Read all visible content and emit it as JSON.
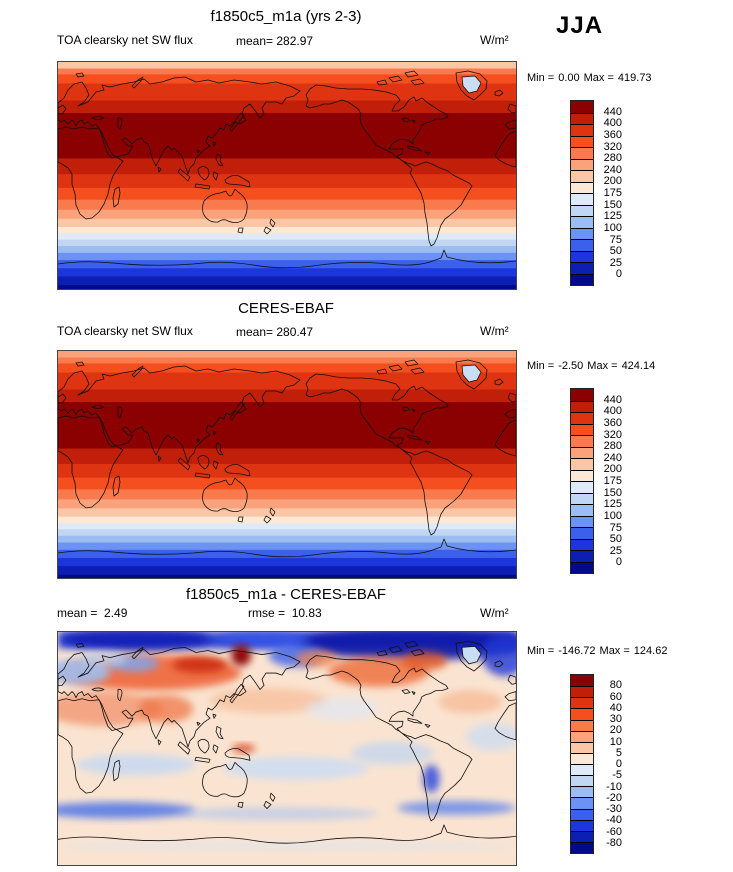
{
  "figure": {
    "season_label": "JJA"
  },
  "panels": [
    {
      "title": "f1850c5_m1a (yrs 2-3)",
      "variable": "TOA clearsky net SW flux",
      "mean_label": "mean=",
      "mean": "282.97",
      "units": "W/m²",
      "min_label": "Min =",
      "min": "0.00",
      "max_label": "Max =",
      "max": "419.73"
    },
    {
      "title": "CERES-EBAF",
      "variable": "TOA clearsky net SW flux",
      "mean_label": "mean=",
      "mean": "280.47",
      "units": "W/m²",
      "min_label": "Min =",
      "min": "-2.50",
      "max_label": "Max =",
      "max": "424.14"
    },
    {
      "title": "f1850c5_m1a - CERES-EBAF",
      "mean_label": "mean =",
      "mean": "2.49",
      "rmse_label": "rmse =",
      "rmse": "10.83",
      "units": "W/m²",
      "min_label": "Min =",
      "min": "-146.72",
      "max_label": "Max =",
      "max": "124.62"
    }
  ],
  "chart_data": [
    {
      "type": "heatmap",
      "title": "f1850c5_m1a (yrs 2-3)",
      "subtitle": "TOA clearsky net SW flux",
      "season": "JJA",
      "units": "W/m²",
      "projection": "global lat-lon, Pacific-centered",
      "mean": 282.97,
      "min": 0.0,
      "max": 419.73,
      "levels": [
        0,
        25,
        50,
        75,
        100,
        125,
        150,
        175,
        200,
        240,
        280,
        320,
        360,
        400,
        440
      ],
      "colorbar_ticks": [
        "440",
        "400",
        "360",
        "320",
        "280",
        "240",
        "200",
        "175",
        "150",
        "125",
        "100",
        "75",
        "50",
        "25",
        "0"
      ],
      "palette": [
        "#8B0000",
        "#C11F09",
        "#DF3412",
        "#F54E1F",
        "#F97B4D",
        "#FAA27C",
        "#FBC6A5",
        "#FCE8D4",
        "#DEEAF8",
        "#C1D6F3",
        "#9BBDF1",
        "#6C93F3",
        "#3B60EC",
        "#1C35DC",
        "#0D1FB2",
        "#020A8C"
      ],
      "zonal_bands": [
        [
          0.03,
          6
        ],
        [
          0.026,
          4
        ],
        [
          0.04,
          3
        ],
        [
          0.075,
          2
        ],
        [
          0.055,
          1
        ],
        [
          0.2,
          0
        ],
        [
          0.07,
          1
        ],
        [
          0.06,
          2
        ],
        [
          0.052,
          3
        ],
        [
          0.044,
          4
        ],
        [
          0.04,
          5
        ],
        [
          0.036,
          6
        ],
        [
          0.03,
          7
        ],
        [
          0.026,
          8
        ],
        [
          0.028,
          9
        ],
        [
          0.03,
          10
        ],
        [
          0.032,
          11
        ],
        [
          0.036,
          12
        ],
        [
          0.036,
          13
        ],
        [
          0.038,
          14
        ],
        [
          0.016,
          15
        ]
      ]
    },
    {
      "type": "heatmap",
      "title": "CERES-EBAF",
      "subtitle": "TOA clearsky net SW flux",
      "season": "JJA",
      "units": "W/m²",
      "projection": "global lat-lon, Pacific-centered",
      "mean": 280.47,
      "min": -2.5,
      "max": 424.14,
      "levels": [
        0,
        25,
        50,
        75,
        100,
        125,
        150,
        175,
        200,
        240,
        280,
        320,
        360,
        400,
        440
      ],
      "colorbar_ticks": [
        "440",
        "400",
        "360",
        "320",
        "280",
        "240",
        "200",
        "175",
        "150",
        "125",
        "100",
        "75",
        "50",
        "25",
        "0"
      ],
      "palette": [
        "#8B0000",
        "#C11F09",
        "#DF3412",
        "#F54E1F",
        "#F97B4D",
        "#FAA27C",
        "#FBC6A5",
        "#FCE8D4",
        "#DEEAF8",
        "#C1D6F3",
        "#9BBDF1",
        "#6C93F3",
        "#3B60EC",
        "#1C35DC",
        "#0D1FB2",
        "#020A8C"
      ],
      "zonal_bands": [
        [
          0.03,
          5
        ],
        [
          0.026,
          4
        ],
        [
          0.04,
          3
        ],
        [
          0.075,
          2
        ],
        [
          0.055,
          1
        ],
        [
          0.205,
          0
        ],
        [
          0.068,
          1
        ],
        [
          0.06,
          2
        ],
        [
          0.052,
          3
        ],
        [
          0.044,
          4
        ],
        [
          0.04,
          5
        ],
        [
          0.036,
          6
        ],
        [
          0.03,
          7
        ],
        [
          0.026,
          8
        ],
        [
          0.028,
          9
        ],
        [
          0.03,
          10
        ],
        [
          0.032,
          11
        ],
        [
          0.036,
          12
        ],
        [
          0.036,
          13
        ],
        [
          0.038,
          14
        ],
        [
          0.013,
          15
        ]
      ]
    },
    {
      "type": "heatmap",
      "title": "f1850c5_m1a - CERES-EBAF",
      "season": "JJA",
      "units": "W/m²",
      "projection": "global lat-lon, Pacific-centered",
      "mean": 2.49,
      "rmse": 10.83,
      "min": -146.72,
      "max": 124.62,
      "levels": [
        -80,
        -60,
        -40,
        -30,
        -20,
        -10,
        -5,
        0,
        5,
        10,
        20,
        30,
        40,
        60,
        80
      ],
      "colorbar_ticks": [
        "80",
        "60",
        "40",
        "30",
        "20",
        "10",
        "5",
        "0",
        "-5",
        "-10",
        "-20",
        "-30",
        "-40",
        "-60",
        "-80"
      ],
      "palette": [
        "#8B0000",
        "#C11F09",
        "#DF3412",
        "#F54E1F",
        "#F97B4D",
        "#FAA27C",
        "#FBC6A5",
        "#FCE8D4",
        "#DEEAF8",
        "#C1D6F3",
        "#9BBDF1",
        "#6C93F3",
        "#3B60EC",
        "#1C35DC",
        "#0D1FB2",
        "#020A8C"
      ],
      "base_color": "#FAE4D1",
      "anomaly_regions": [
        {
          "s": "rect",
          "x": 0,
          "y": 0,
          "w": 1,
          "h": 0.07,
          "c": "#2038D6",
          "o": 0.95
        },
        {
          "s": "ell",
          "x": 0.78,
          "y": 0.05,
          "rx": 0.26,
          "ry": 0.07,
          "c": "#0A16A6",
          "o": 0.9
        },
        {
          "s": "ell",
          "x": 0.17,
          "y": 0.03,
          "rx": 0.16,
          "ry": 0.05,
          "c": "#0D1CB0",
          "o": 0.8
        },
        {
          "s": "ell",
          "x": 0.45,
          "y": 0.03,
          "rx": 0.1,
          "ry": 0.035,
          "c": "#3A55E8",
          "o": 0.8
        },
        {
          "s": "ell",
          "x": 0.52,
          "y": 0.1,
          "rx": 0.06,
          "ry": 0.05,
          "c": "#4668EA",
          "o": 0.85
        },
        {
          "s": "ell",
          "x": 0.975,
          "y": 0.1,
          "rx": 0.05,
          "ry": 0.09,
          "c": "#2038D6",
          "o": 0.8
        },
        {
          "s": "ell",
          "x": 0.2,
          "y": 0.175,
          "rx": 0.2,
          "ry": 0.075,
          "c": "#EE6134",
          "o": 0.88
        },
        {
          "s": "ell",
          "x": 0.31,
          "y": 0.14,
          "rx": 0.06,
          "ry": 0.035,
          "c": "#CC2B0C",
          "o": 0.9
        },
        {
          "s": "ell",
          "x": 0.4,
          "y": 0.1,
          "rx": 0.022,
          "ry": 0.045,
          "c": "#8B0000",
          "o": 0.95
        },
        {
          "s": "ell",
          "x": 0.045,
          "y": 0.17,
          "rx": 0.07,
          "ry": 0.055,
          "c": "#9FBEEF",
          "o": 0.9
        },
        {
          "s": "ell",
          "x": 0.165,
          "y": 0.135,
          "rx": 0.055,
          "ry": 0.035,
          "c": "#7FA5EC",
          "o": 0.85
        },
        {
          "s": "ell",
          "x": 0.1,
          "y": 0.115,
          "rx": 0.05,
          "ry": 0.03,
          "c": "#BCD2F2",
          "o": 0.8
        },
        {
          "s": "ell",
          "x": 0.7,
          "y": 0.17,
          "rx": 0.11,
          "ry": 0.065,
          "c": "#EE6A3A",
          "o": 0.8
        },
        {
          "s": "ell",
          "x": 0.8,
          "y": 0.125,
          "rx": 0.05,
          "ry": 0.04,
          "c": "#E45522",
          "o": 0.8
        },
        {
          "s": "ell",
          "x": 0.565,
          "y": 0.115,
          "rx": 0.045,
          "ry": 0.035,
          "c": "#F08552",
          "o": 0.8
        },
        {
          "s": "ell",
          "x": 0.1,
          "y": 0.33,
          "rx": 0.13,
          "ry": 0.075,
          "c": "#F2926B",
          "o": 0.75
        },
        {
          "s": "ell",
          "x": 0.235,
          "y": 0.33,
          "rx": 0.06,
          "ry": 0.06,
          "c": "#EE7040",
          "o": 0.7
        },
        {
          "s": "ell",
          "x": 0.46,
          "y": 0.295,
          "rx": 0.13,
          "ry": 0.055,
          "c": "#F6B48E",
          "o": 0.6
        },
        {
          "s": "ell",
          "x": 0.9,
          "y": 0.3,
          "rx": 0.07,
          "ry": 0.05,
          "c": "#F4A87E",
          "o": 0.55
        },
        {
          "s": "ell",
          "x": 0.405,
          "y": 0.5,
          "rx": 0.025,
          "ry": 0.018,
          "c": "#D8431C",
          "o": 0.9
        },
        {
          "s": "ell",
          "x": 0.17,
          "y": 0.57,
          "rx": 0.13,
          "ry": 0.045,
          "c": "#C3D8F4",
          "o": 0.8
        },
        {
          "s": "ell",
          "x": 0.52,
          "y": 0.585,
          "rx": 0.16,
          "ry": 0.05,
          "c": "#C9DCF5",
          "o": 0.8
        },
        {
          "s": "ell",
          "x": 0.73,
          "y": 0.52,
          "rx": 0.09,
          "ry": 0.05,
          "c": "#BDD4F2",
          "o": 0.7
        },
        {
          "s": "ell",
          "x": 0.95,
          "y": 0.45,
          "rx": 0.06,
          "ry": 0.06,
          "c": "#C9DCF5",
          "o": 0.7
        },
        {
          "s": "ell",
          "x": 0.62,
          "y": 0.33,
          "rx": 0.08,
          "ry": 0.05,
          "c": "#DCE8F8",
          "o": 0.6
        },
        {
          "s": "ell",
          "x": 0.13,
          "y": 0.765,
          "rx": 0.17,
          "ry": 0.035,
          "c": "#4E74E8",
          "o": 0.85
        },
        {
          "s": "ell",
          "x": 0.48,
          "y": 0.78,
          "rx": 0.22,
          "ry": 0.028,
          "c": "#A9C2F0",
          "o": 0.6
        },
        {
          "s": "ell",
          "x": 0.87,
          "y": 0.755,
          "rx": 0.13,
          "ry": 0.03,
          "c": "#5F85EC",
          "o": 0.8
        },
        {
          "s": "ell",
          "x": 0.815,
          "y": 0.63,
          "rx": 0.018,
          "ry": 0.06,
          "c": "#2E4EDC",
          "o": 0.85
        },
        {
          "s": "ell",
          "x": 0.5,
          "y": 0.92,
          "rx": 0.5,
          "ry": 0.02,
          "c": "#D5E4F6",
          "o": 0.5
        }
      ]
    }
  ]
}
